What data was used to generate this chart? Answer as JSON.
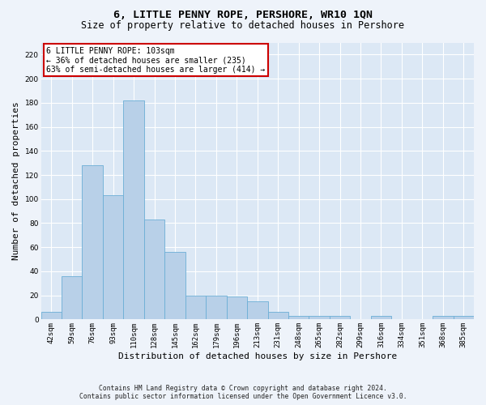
{
  "title": "6, LITTLE PENNY ROPE, PERSHORE, WR10 1QN",
  "subtitle": "Size of property relative to detached houses in Pershore",
  "xlabel": "Distribution of detached houses by size in Pershore",
  "ylabel": "Number of detached properties",
  "categories": [
    "42sqm",
    "59sqm",
    "76sqm",
    "93sqm",
    "110sqm",
    "128sqm",
    "145sqm",
    "162sqm",
    "179sqm",
    "196sqm",
    "213sqm",
    "231sqm",
    "248sqm",
    "265sqm",
    "282sqm",
    "299sqm",
    "316sqm",
    "334sqm",
    "351sqm",
    "368sqm",
    "385sqm"
  ],
  "values": [
    6,
    36,
    128,
    103,
    182,
    83,
    56,
    20,
    20,
    19,
    15,
    6,
    3,
    3,
    3,
    0,
    3,
    0,
    0,
    3,
    3
  ],
  "bar_color": "#b8d0e8",
  "bar_edge_color": "#6baed6",
  "annotation_text": "6 LITTLE PENNY ROPE: 103sqm\n← 36% of detached houses are smaller (235)\n63% of semi-detached houses are larger (414) →",
  "annotation_box_color": "#ffffff",
  "annotation_box_edge_color": "#cc0000",
  "ylim": [
    0,
    230
  ],
  "yticks": [
    0,
    20,
    40,
    60,
    80,
    100,
    120,
    140,
    160,
    180,
    200,
    220
  ],
  "background_color": "#dce8f5",
  "grid_color": "#ffffff",
  "footer1": "Contains HM Land Registry data © Crown copyright and database right 2024.",
  "footer2": "Contains public sector information licensed under the Open Government Licence v3.0.",
  "title_fontsize": 9.5,
  "subtitle_fontsize": 8.5,
  "tick_fontsize": 6.5,
  "ylabel_fontsize": 8,
  "xlabel_fontsize": 8,
  "annotation_fontsize": 7,
  "footer_fontsize": 5.8,
  "fig_bg": "#eef3fa"
}
